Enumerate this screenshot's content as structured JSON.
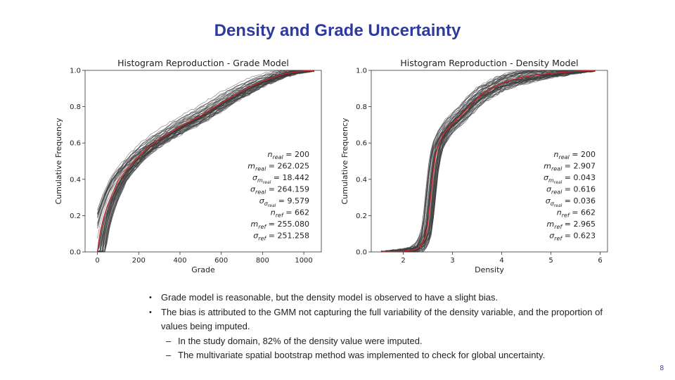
{
  "slide": {
    "title": "Density and Grade Uncertainty",
    "page_number": "8"
  },
  "colors": {
    "title": "#2e3a9e",
    "realization_line": "#3a3a3a",
    "reference_line": "#d62728"
  },
  "chart_data": [
    {
      "type": "line",
      "title": "Histogram Reproduction - Grade Model",
      "xlabel": "Grade",
      "ylabel": "Cumulative Frequency",
      "xlim": [
        -60,
        1085
      ],
      "ylim": [
        0,
        1.0
      ],
      "xticks": [
        0,
        200,
        400,
        600,
        800,
        1000
      ],
      "yticks": [
        0.0,
        0.2,
        0.4,
        0.6,
        0.8,
        1.0
      ],
      "ytick_labels": [
        "0.0",
        "0.2",
        "0.4",
        "0.6",
        "0.8",
        "1.0"
      ],
      "realization_count": 60,
      "series": [
        {
          "name": "reference",
          "x": [
            0,
            5,
            15,
            30,
            50,
            75,
            100,
            130,
            160,
            200,
            250,
            300,
            350,
            400,
            450,
            500,
            550,
            600,
            650,
            700,
            750,
            800,
            850,
            900,
            950,
            1000,
            1050
          ],
          "y": [
            0,
            0.05,
            0.12,
            0.19,
            0.26,
            0.33,
            0.39,
            0.44,
            0.48,
            0.53,
            0.58,
            0.62,
            0.655,
            0.69,
            0.72,
            0.75,
            0.785,
            0.82,
            0.855,
            0.885,
            0.915,
            0.94,
            0.96,
            0.98,
            0.99,
            0.997,
            1.0
          ]
        }
      ],
      "stats": [
        {
          "label": "n",
          "sub": "real",
          "value": "200"
        },
        {
          "label": "m",
          "sub": "real",
          "value": "262.025"
        },
        {
          "label": "σ",
          "sub": "m",
          "subsub": "real",
          "value": "18.442"
        },
        {
          "label": "σ",
          "sub": "real",
          "value": "264.159"
        },
        {
          "label": "σ",
          "sub": "σ",
          "subsub": "real",
          "value": "9.579"
        },
        {
          "label": "n",
          "sub": "ref",
          "value": "662"
        },
        {
          "label": "m",
          "sub": "ref",
          "value": "255.080"
        },
        {
          "label": "σ",
          "sub": "ref",
          "value": "251.258"
        }
      ]
    },
    {
      "type": "line",
      "title": "Histogram Reproduction - Density Model",
      "xlabel": "Density",
      "ylabel": "Cumulative Frequency",
      "xlim": [
        1.35,
        6.15
      ],
      "ylim": [
        0,
        1.0
      ],
      "xticks": [
        2,
        3,
        4,
        5,
        6
      ],
      "yticks": [
        0.0,
        0.2,
        0.4,
        0.6,
        0.8,
        1.0
      ],
      "ytick_labels": [
        "0.0",
        "0.2",
        "0.4",
        "0.6",
        "0.8",
        "1.0"
      ],
      "realization_count": 60,
      "series": [
        {
          "name": "reference",
          "x": [
            1.55,
            2.0,
            2.2,
            2.35,
            2.45,
            2.5,
            2.55,
            2.6,
            2.65,
            2.7,
            2.8,
            2.9,
            3.0,
            3.2,
            3.4,
            3.6,
            3.8,
            4.0,
            4.3,
            4.6,
            5.0,
            5.5,
            5.9
          ],
          "y": [
            0,
            0.003,
            0.01,
            0.03,
            0.08,
            0.15,
            0.28,
            0.42,
            0.52,
            0.58,
            0.64,
            0.68,
            0.71,
            0.76,
            0.82,
            0.87,
            0.9,
            0.93,
            0.955,
            0.97,
            0.985,
            0.995,
            1.0
          ]
        }
      ],
      "stats": [
        {
          "label": "n",
          "sub": "real",
          "value": "200"
        },
        {
          "label": "m",
          "sub": "real",
          "value": "2.907"
        },
        {
          "label": "σ",
          "sub": "m",
          "subsub": "real",
          "value": "0.043"
        },
        {
          "label": "σ",
          "sub": "real",
          "value": "0.616"
        },
        {
          "label": "σ",
          "sub": "σ",
          "subsub": "real",
          "value": "0.036"
        },
        {
          "label": "n",
          "sub": "ref",
          "value": "662"
        },
        {
          "label": "m",
          "sub": "ref",
          "value": "2.965"
        },
        {
          "label": "σ",
          "sub": "ref",
          "value": "0.623"
        }
      ]
    }
  ],
  "bullets": [
    {
      "level": 1,
      "text": "Grade model is reasonable, but the density model is observed to have a slight bias."
    },
    {
      "level": 1,
      "text": "The bias is attributed to the GMM not capturing the full variability of the density variable, and the proportion of values being imputed."
    },
    {
      "level": 2,
      "text": "In the study domain, 82% of the density value were imputed."
    },
    {
      "level": 2,
      "text": "The multivariate spatial bootstrap method was implemented to check for global uncertainty."
    }
  ]
}
